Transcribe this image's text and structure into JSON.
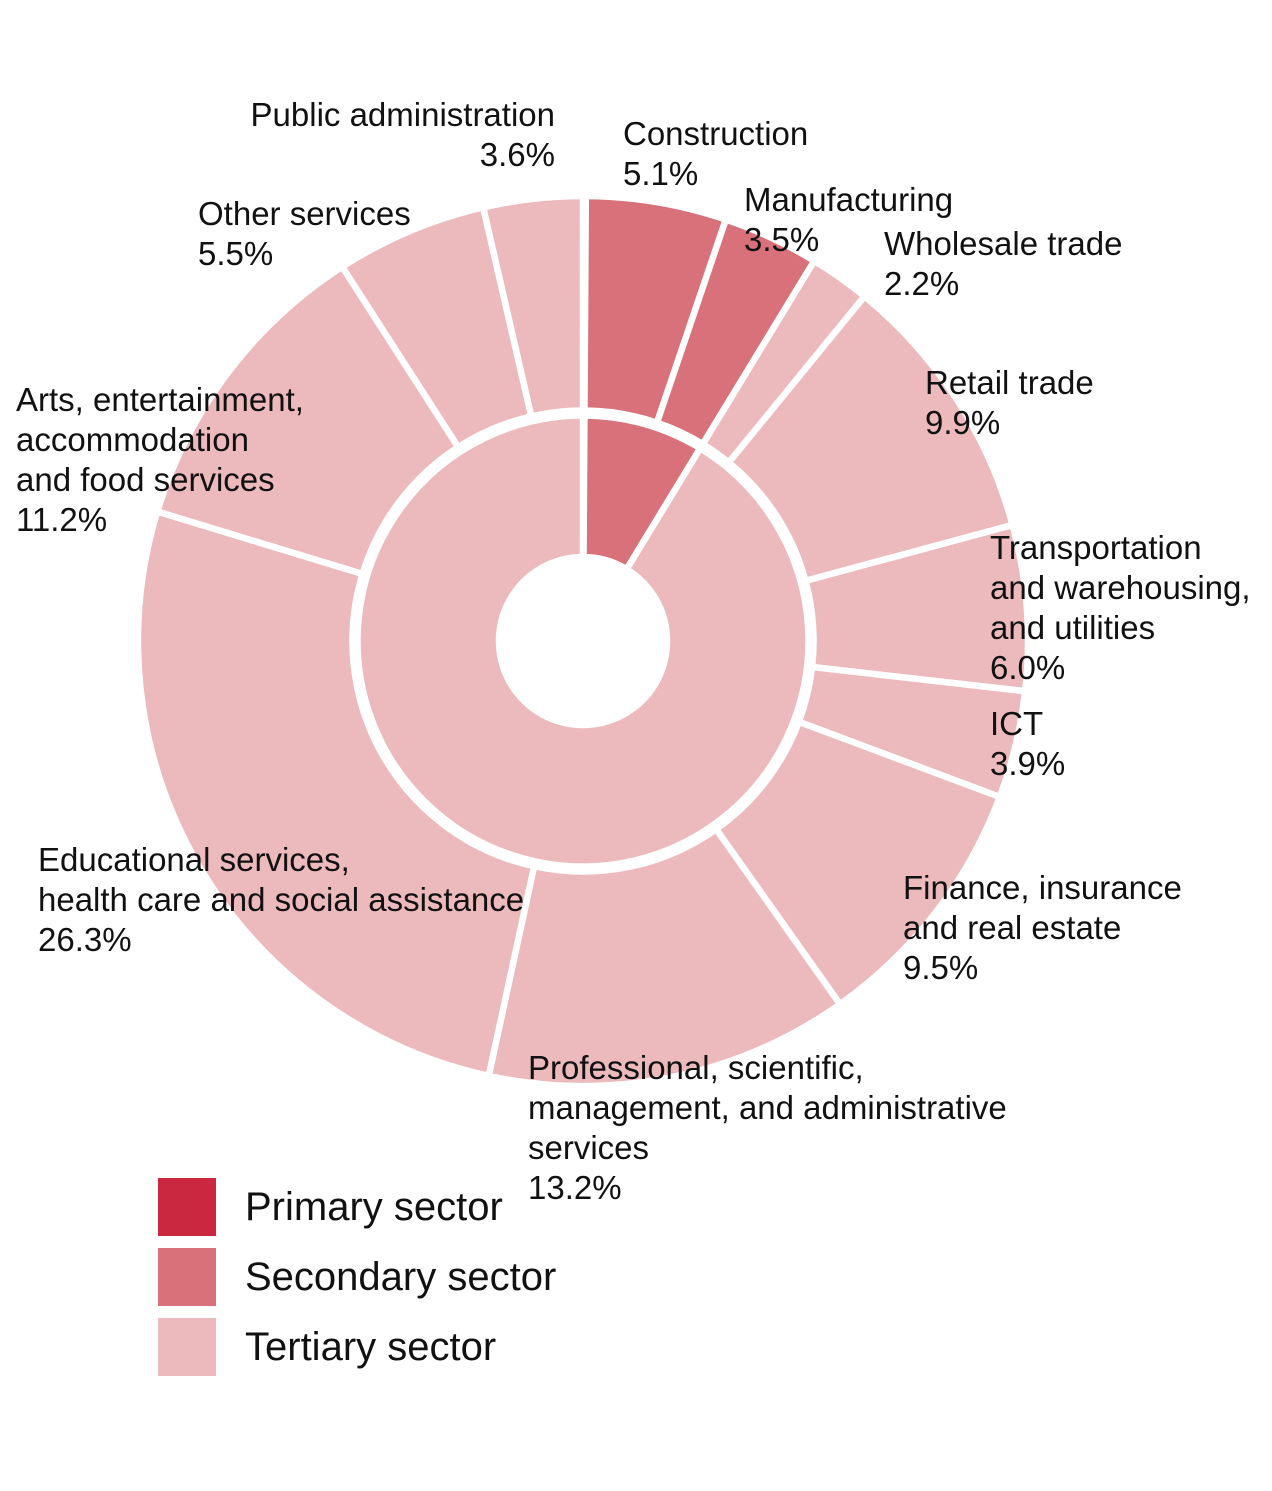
{
  "figure": {
    "background": "#ffffff",
    "text_color": "#111111",
    "separator_color": "#ffffff"
  },
  "colors": {
    "primary": "#ca2840",
    "secondary": "#d87179",
    "tertiary": "#ecb9bd"
  },
  "chart_data": {
    "type": "pie",
    "variant": "sunburst-donut",
    "units": "%",
    "direction": "clockwise",
    "start_angle_deg": 0,
    "legend_position": "bottom-left",
    "outer_ring_segments": [
      {
        "slug": "construction",
        "label": "Construction",
        "value": 5.1,
        "sector": "secondary"
      },
      {
        "slug": "manufacturing",
        "label": "Manufacturing",
        "value": 3.5,
        "sector": "secondary"
      },
      {
        "slug": "wholesale-trade",
        "label": "Wholesale trade",
        "value": 2.2,
        "sector": "tertiary"
      },
      {
        "slug": "retail-trade",
        "label": "Retail trade",
        "value": 9.9,
        "sector": "tertiary"
      },
      {
        "slug": "transportation-warehousing-utilities",
        "label": "Transportation and warehousing, and utilities",
        "value": 6.0,
        "sector": "tertiary"
      },
      {
        "slug": "ict",
        "label": "ICT",
        "value": 3.9,
        "sector": "tertiary"
      },
      {
        "slug": "finance-insurance-real-estate",
        "label": "Finance, insurance and real estate",
        "value": 9.5,
        "sector": "tertiary"
      },
      {
        "slug": "professional-scientific-management-administrative-services",
        "label": "Professional, scientific, management, and administrative services",
        "value": 13.2,
        "sector": "tertiary"
      },
      {
        "slug": "educational-health-social",
        "label": "Educational services, health care and social assistance",
        "value": 26.3,
        "sector": "tertiary"
      },
      {
        "slug": "arts-entertainment-accommodation-food",
        "label": "Arts, entertainment, accommodation and food services",
        "value": 11.2,
        "sector": "tertiary"
      },
      {
        "slug": "other-services",
        "label": "Other services",
        "value": 5.5,
        "sector": "tertiary"
      },
      {
        "slug": "public-administration",
        "label": "Public administration",
        "value": 3.6,
        "sector": "tertiary"
      }
    ],
    "inner_ring_segments": [
      {
        "slug": "primary",
        "label": "Primary sector",
        "value": 0.1,
        "estimated": true
      },
      {
        "slug": "secondary",
        "label": "Secondary sector",
        "value": 8.6
      },
      {
        "slug": "tertiary",
        "label": "Tertiary sector",
        "value": 91.3
      }
    ]
  },
  "segment_labels": [
    {
      "slug": "construction",
      "lines": [
        "Construction",
        "5.1%"
      ]
    },
    {
      "slug": "manufacturing",
      "lines": [
        "Manufacturing",
        "3.5%"
      ]
    },
    {
      "slug": "wholesale-trade",
      "lines": [
        "Wholesale trade",
        "2.2%"
      ]
    },
    {
      "slug": "retail-trade",
      "lines": [
        "Retail trade",
        "9.9%"
      ]
    },
    {
      "slug": "transportation-warehousing-utilities",
      "lines": [
        "Transportation",
        "and warehousing,",
        "and utilities",
        "6.0%"
      ]
    },
    {
      "slug": "ict",
      "lines": [
        "ICT",
        "3.9%"
      ]
    },
    {
      "slug": "finance-insurance-real-estate",
      "lines": [
        "Finance, insurance",
        "and real estate",
        "9.5%"
      ]
    },
    {
      "slug": "professional-scientific-management-administrative-services",
      "lines": [
        "Professional, scientific,",
        "management, and administrative",
        "services",
        "13.2%"
      ]
    },
    {
      "slug": "educational-health-social",
      "lines": [
        "Educational services,",
        "health care and social assistance",
        "26.3%"
      ]
    },
    {
      "slug": "arts-entertainment-accommodation-food",
      "lines": [
        "Arts, entertainment,",
        "accommodation",
        "and food services",
        "11.2%"
      ]
    },
    {
      "slug": "other-services",
      "lines": [
        "Other services",
        "5.5%"
      ]
    },
    {
      "slug": "public-administration",
      "lines": [
        "Public administration",
        "3.6%"
      ]
    }
  ],
  "legend": [
    {
      "slug": "primary",
      "label": "Primary sector",
      "color": "#ca2840"
    },
    {
      "slug": "secondary",
      "label": "Secondary sector",
      "color": "#d87179"
    },
    {
      "slug": "tertiary",
      "label": "Tertiary sector",
      "color": "#ecb9bd"
    }
  ]
}
